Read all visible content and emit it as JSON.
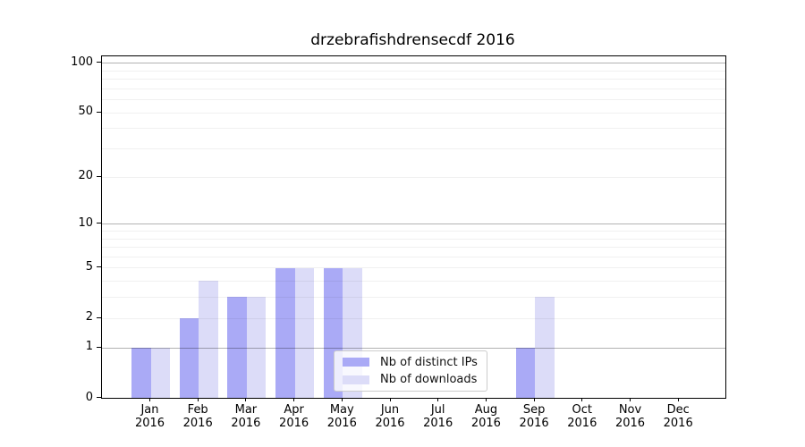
{
  "chart_data": {
    "type": "bar",
    "title": "drzebrafishdrensecdf 2016",
    "categories": [
      "Jan",
      "Feb",
      "Mar",
      "Apr",
      "May",
      "Jun",
      "Jul",
      "Aug",
      "Sep",
      "Oct",
      "Nov",
      "Dec"
    ],
    "category_year": "2016",
    "series": [
      {
        "name": "Nb of distinct IPs",
        "color": "#aaaaf6",
        "values": [
          1,
          2,
          3,
          5,
          5,
          0,
          0,
          0,
          1,
          0,
          0,
          0
        ]
      },
      {
        "name": "Nb of downloads",
        "color": "#dcdcf8",
        "values": [
          1,
          4,
          3,
          5,
          5,
          0,
          0,
          0,
          3,
          0,
          0,
          0
        ]
      }
    ],
    "yscale": "log1p",
    "ylim": [
      0,
      110
    ],
    "y_tick_labels": [
      0,
      1,
      2,
      5,
      10,
      20,
      50,
      100
    ],
    "y_gridlines_light": [
      2,
      3,
      4,
      5,
      6,
      7,
      8,
      9,
      20,
      30,
      40,
      50,
      60,
      70,
      80,
      90
    ],
    "y_gridlines_decade": [
      1,
      10,
      100
    ],
    "grid": true,
    "legend_position": "lower center",
    "colors": {
      "axis": "#000000",
      "grid_minor": "#ececec",
      "grid_decade": "#b0b0b0",
      "background": "#ffffff",
      "text": "#000000"
    }
  }
}
